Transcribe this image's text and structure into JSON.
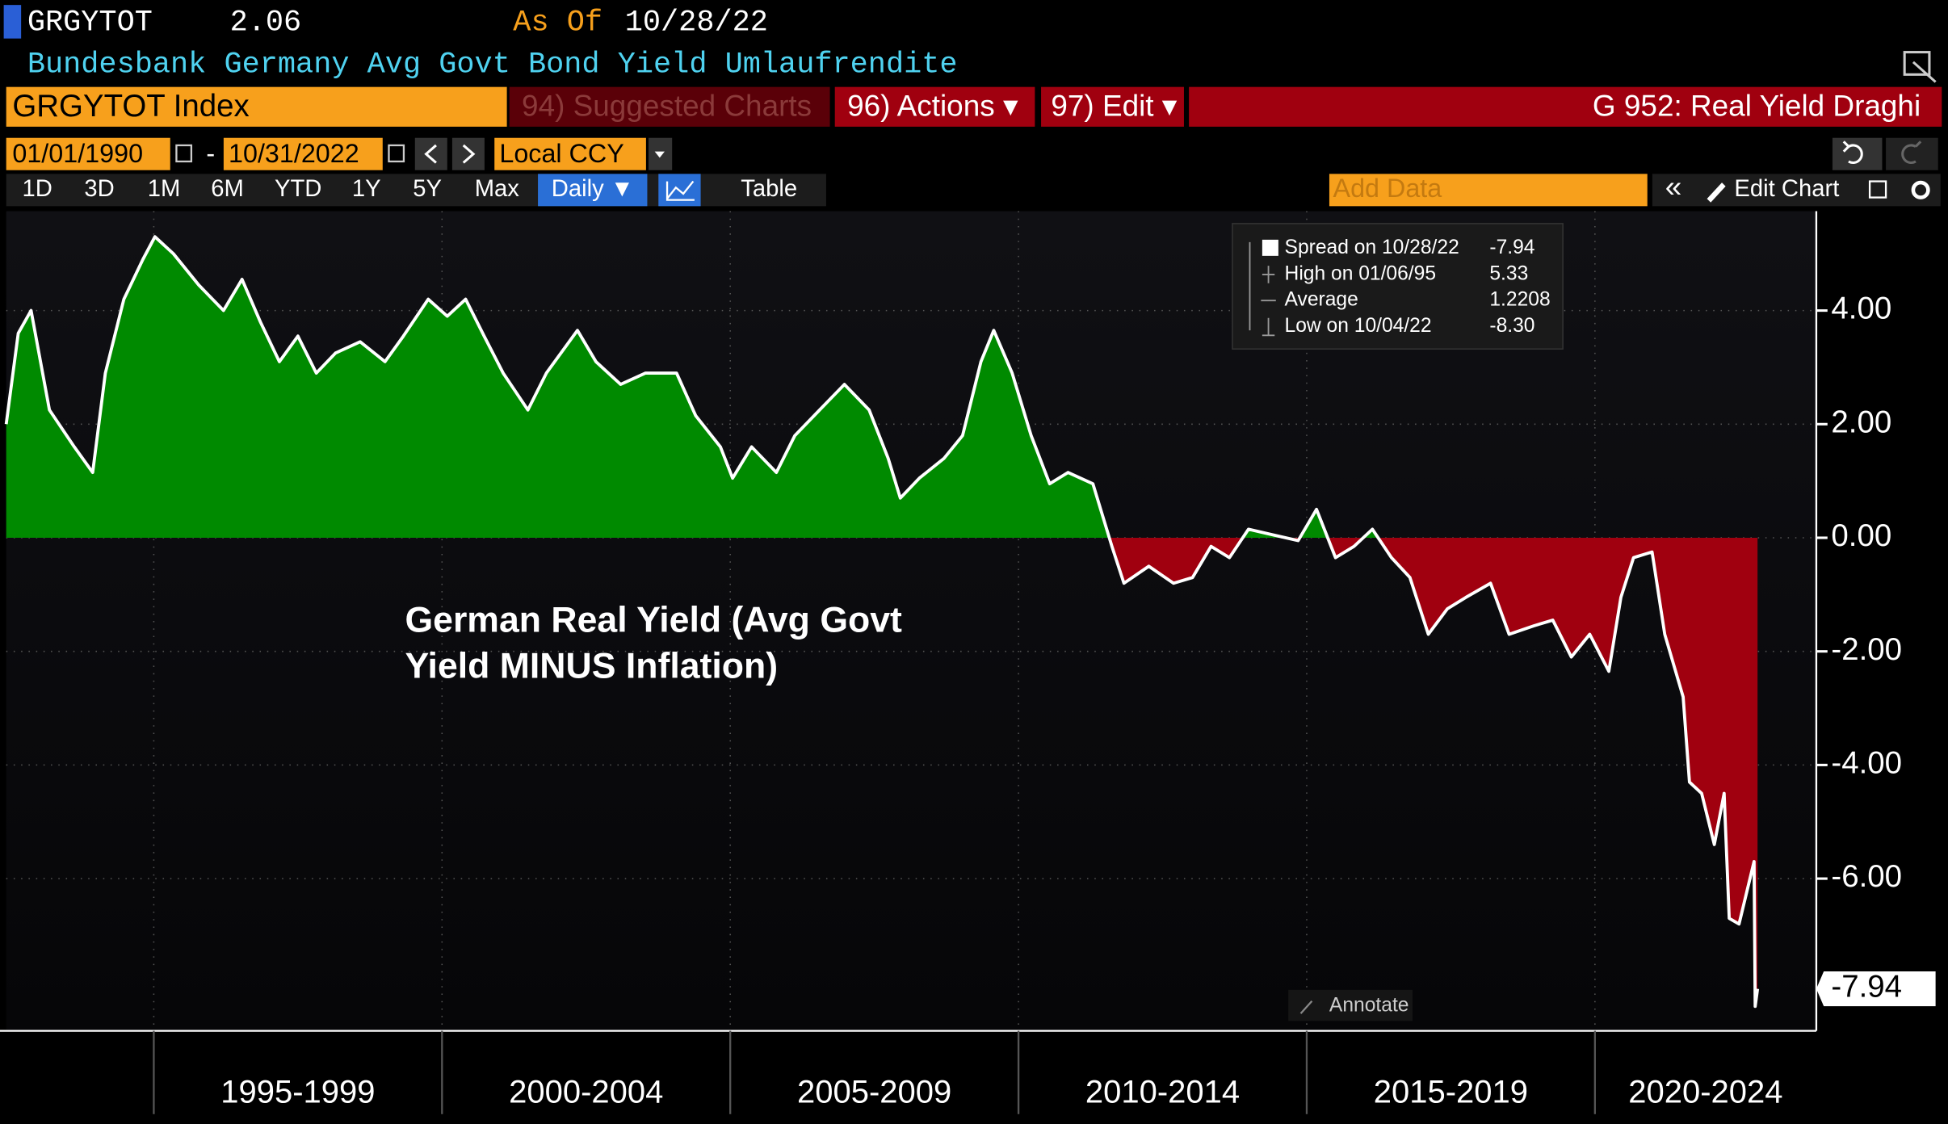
{
  "header": {
    "ticker": "GRGYTOT",
    "price": "2.06",
    "as_of_label": "As Of",
    "as_of_date": "10/28/22",
    "description": "Bundesbank Germany Avg Govt Bond Yield Umlaufrendite"
  },
  "toolbar": {
    "security": "GRGYTOT Index",
    "suggested": "94) Suggested Charts",
    "actions": "96) Actions ▾",
    "edit": "97) Edit ▾",
    "chart_name": "G 952: Real Yield Draghi",
    "start_date": "01/01/1990",
    "date_separator": "-",
    "end_date": "10/31/2022",
    "currency": "Local CCY",
    "periods": [
      "1D",
      "3D",
      "1M",
      "6M",
      "YTD",
      "1Y",
      "5Y",
      "Max"
    ],
    "frequency": "Daily ▼",
    "table": "Table",
    "add_data": "Add Data",
    "back": "«",
    "edit_chart": "Edit Chart",
    "annotate": "Annotate"
  },
  "chart_data": {
    "type": "area",
    "annotation": [
      "German Real Yield (Avg Govt",
      "Yield MINUS Inflation)"
    ],
    "legend_stats": [
      {
        "label": "Spread on 10/28/22",
        "value": "-7.94"
      },
      {
        "label": "High on 01/06/95",
        "value": "5.33"
      },
      {
        "label": "Average",
        "value": "1.2208"
      },
      {
        "label": "Low on 10/04/22",
        "value": "-8.30"
      }
    ],
    "positive_color": "#008a00",
    "negative_color": "#a0000f",
    "xlim": [
      1992.44,
      2023.84
    ],
    "xperiods": [
      {
        "start": 1995,
        "label": "1995-1999"
      },
      {
        "start": 2000,
        "label": "2000-2004"
      },
      {
        "start": 2005,
        "label": "2005-2009"
      },
      {
        "start": 2010,
        "label": "2010-2014"
      },
      {
        "start": 2015,
        "label": "2015-2019"
      },
      {
        "start": 2020,
        "label": "2020-2024"
      }
    ],
    "ylim": [
      -8.68,
      5.75
    ],
    "yticks": [
      {
        "value": -6,
        "label": "-6.00"
      },
      {
        "value": -4,
        "label": "-4.00"
      },
      {
        "value": -2,
        "label": "-2.00"
      },
      {
        "value": 0,
        "label": "0.00"
      },
      {
        "value": 2,
        "label": "2.00"
      },
      {
        "value": 4,
        "label": "4.00"
      }
    ],
    "grid": true,
    "last_value_label": "-7.94",
    "x": [
      1992.44,
      1992.65,
      1992.87,
      1993.19,
      1993.62,
      1993.94,
      1994.16,
      1994.48,
      1994.81,
      1995.02,
      1995.34,
      1995.78,
      1996.21,
      1996.53,
      1996.85,
      1997.18,
      1997.5,
      1997.82,
      1998.15,
      1998.58,
      1999.01,
      1999.33,
      1999.76,
      2000.09,
      2000.41,
      2000.73,
      2001.06,
      2001.49,
      2001.81,
      2002.35,
      2002.67,
      2003.1,
      2003.53,
      2004.07,
      2004.4,
      2004.83,
      2005.04,
      2005.37,
      2005.8,
      2006.12,
      2006.55,
      2006.98,
      2007.41,
      2007.74,
      2007.95,
      2008.28,
      2008.71,
      2009.03,
      2009.35,
      2009.57,
      2009.89,
      2010.22,
      2010.54,
      2010.86,
      2011.29,
      2011.62,
      2011.83,
      2012.26,
      2012.69,
      2013.02,
      2013.34,
      2013.66,
      2013.99,
      2014.42,
      2014.85,
      2015.17,
      2015.5,
      2015.82,
      2016.14,
      2016.47,
      2016.79,
      2017.11,
      2017.44,
      2017.76,
      2018.19,
      2018.51,
      2018.94,
      2019.27,
      2019.59,
      2019.91,
      2020.24,
      2020.45,
      2020.67,
      2020.99,
      2021.21,
      2021.53,
      2021.64,
      2021.85,
      2022.07,
      2022.24,
      2022.33,
      2022.5,
      2022.76,
      2022.78,
      2022.82
    ],
    "series": [
      {
        "color": "#ffffff",
        "values": [
          2.0,
          3.6,
          4.0,
          2.25,
          1.6,
          1.15,
          2.9,
          4.2,
          4.9,
          5.3,
          5.0,
          4.45,
          4.0,
          4.55,
          3.8,
          3.1,
          3.55,
          2.9,
          3.25,
          3.45,
          3.1,
          3.55,
          4.2,
          3.9,
          4.2,
          3.55,
          2.9,
          2.25,
          2.9,
          3.65,
          3.1,
          2.7,
          2.9,
          2.9,
          2.15,
          1.6,
          1.05,
          1.6,
          1.15,
          1.8,
          2.25,
          2.7,
          2.25,
          1.4,
          0.7,
          1.05,
          1.4,
          1.8,
          3.1,
          3.65,
          2.9,
          1.8,
          0.95,
          1.15,
          0.95,
          -0.15,
          -0.8,
          -0.5,
          -0.8,
          -0.7,
          -0.15,
          -0.35,
          0.15,
          0.05,
          -0.05,
          0.5,
          -0.35,
          -0.15,
          0.15,
          -0.35,
          -0.7,
          -1.7,
          -1.25,
          -1.05,
          -0.8,
          -1.7,
          -1.55,
          -1.45,
          -2.1,
          -1.7,
          -2.35,
          -1.05,
          -0.35,
          -0.25,
          -1.7,
          -2.8,
          -4.3,
          -4.5,
          -5.4,
          -4.5,
          -6.7,
          -6.8,
          -5.7,
          -8.25,
          -7.94
        ]
      }
    ]
  }
}
